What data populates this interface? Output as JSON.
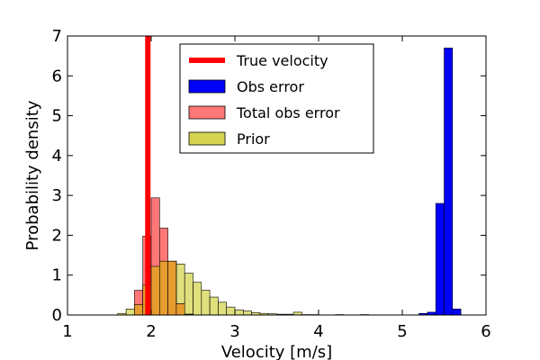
{
  "chart_data": {
    "type": "bar",
    "xlabel": "Velocity [m/s]",
    "ylabel": "Probability density",
    "xlim": [
      1,
      6
    ],
    "ylim": [
      0,
      7
    ],
    "xticks": [
      "1",
      "2",
      "3",
      "4",
      "5",
      "6"
    ],
    "yticks": [
      "0",
      "1",
      "2",
      "3",
      "4",
      "5",
      "6",
      "7"
    ],
    "grid": false,
    "legend_position": "upper-center",
    "true_velocity": {
      "name": "True velocity",
      "x": 1.96,
      "color": "#ff0000"
    },
    "series": [
      {
        "name": "Prior",
        "color": "#d4d452",
        "opacity": 0.75,
        "bin_width": 0.1,
        "bins": [
          [
            1.6,
            0.04
          ],
          [
            1.7,
            0.15
          ],
          [
            1.8,
            0.26
          ],
          [
            1.9,
            0.75
          ],
          [
            2.0,
            1.22
          ],
          [
            2.1,
            1.35
          ],
          [
            2.2,
            1.35
          ],
          [
            2.3,
            1.28
          ],
          [
            2.4,
            1.05
          ],
          [
            2.5,
            0.82
          ],
          [
            2.6,
            0.62
          ],
          [
            2.7,
            0.45
          ],
          [
            2.8,
            0.32
          ],
          [
            2.9,
            0.2
          ],
          [
            3.0,
            0.13
          ],
          [
            3.1,
            0.1
          ],
          [
            3.2,
            0.06
          ],
          [
            3.3,
            0.04
          ],
          [
            3.4,
            0.03
          ],
          [
            3.5,
            0.02
          ],
          [
            3.6,
            0.02
          ],
          [
            3.7,
            0.07
          ],
          [
            3.8,
            0.01
          ],
          [
            3.9,
            0.01
          ],
          [
            4.2,
            0.01
          ],
          [
            4.5,
            0.01
          ]
        ]
      },
      {
        "name": "Total obs error",
        "color": "#ff7777",
        "opacity": 1,
        "bin_width": 0.1,
        "bins": [
          [
            1.8,
            0.62
          ],
          [
            1.9,
            1.98
          ],
          [
            2.0,
            2.94
          ],
          [
            2.1,
            2.18
          ],
          [
            2.2,
            1.35
          ],
          [
            2.3,
            0.28
          ],
          [
            2.4,
            0.02
          ]
        ]
      },
      {
        "name": "Obs error",
        "color": "#0000ff",
        "opacity": 1,
        "bin_width": 0.1,
        "bins": [
          [
            5.2,
            0.04
          ],
          [
            5.3,
            0.07
          ],
          [
            5.4,
            2.8
          ],
          [
            5.5,
            6.7
          ],
          [
            5.6,
            0.15
          ]
        ]
      }
    ],
    "overlap": {
      "color": "#e69c2e",
      "bin_width": 0.1,
      "bins": [
        [
          1.8,
          0.26
        ],
        [
          1.9,
          0.75
        ],
        [
          2.0,
          1.22
        ],
        [
          2.1,
          1.35
        ],
        [
          2.2,
          1.35
        ],
        [
          2.3,
          0.28
        ],
        [
          2.4,
          0.02
        ]
      ]
    },
    "legend": [
      {
        "label": "True velocity",
        "kind": "line",
        "color": "#ff0000"
      },
      {
        "label": "Obs error",
        "kind": "patch",
        "color": "#0000ff"
      },
      {
        "label": "Total obs error",
        "kind": "patch",
        "color": "#ff7777"
      },
      {
        "label": "Prior",
        "kind": "patch",
        "color": "#d4d452"
      }
    ]
  }
}
